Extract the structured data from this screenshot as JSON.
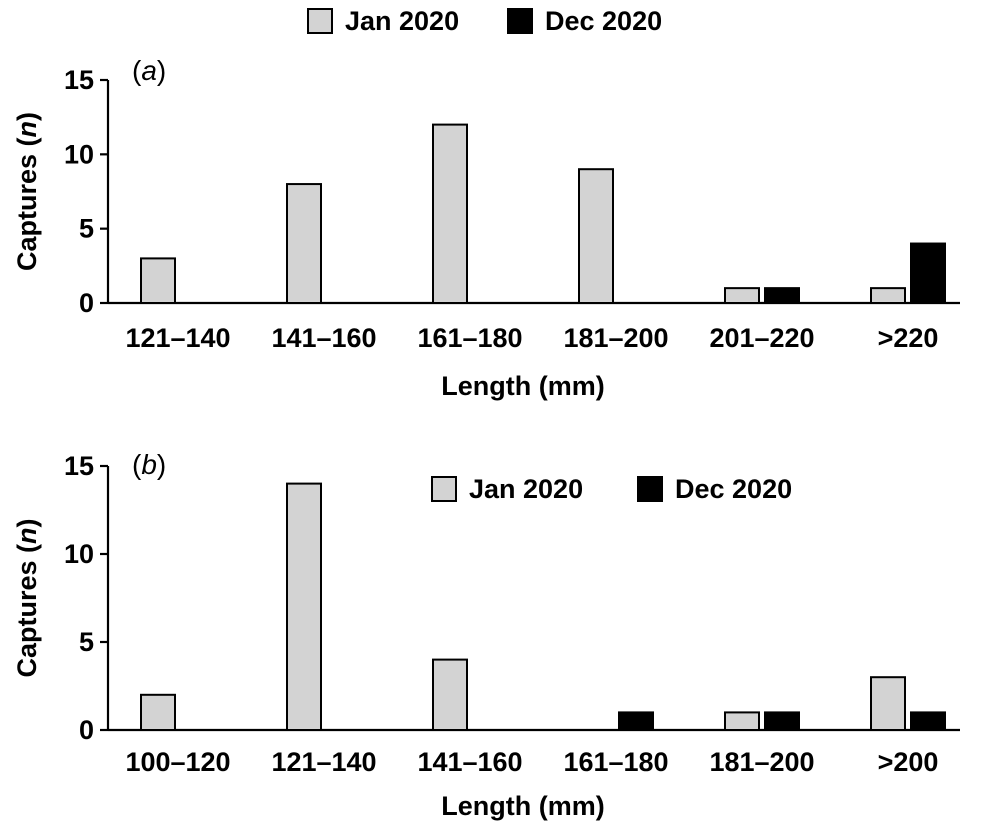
{
  "colors": {
    "jan": "#d3d3d3",
    "dec": "#000000"
  },
  "chart_data": [
    {
      "type": "bar",
      "panel_label": "a",
      "categories": [
        "121–140",
        "141–160",
        "161–180",
        "181–200",
        "201–220",
        ">220"
      ],
      "series": [
        {
          "name": "Jan 2020",
          "values": [
            3,
            8,
            12,
            9,
            1,
            1
          ]
        },
        {
          "name": "Dec 2020",
          "values": [
            0,
            0,
            0,
            0,
            1,
            4
          ]
        }
      ],
      "xlabel": "Length (mm)",
      "ylabel": "Captures (n)",
      "ylabel_main": "Captures (",
      "ylabel_var": "n",
      "ylabel_end": ")",
      "ylim": [
        0,
        15
      ],
      "yticks": [
        0,
        5,
        10,
        15
      ],
      "legend_position": "top-center"
    },
    {
      "type": "bar",
      "panel_label": "b",
      "categories": [
        "100–120",
        "121–140",
        "141–160",
        "161–180",
        "181–200",
        ">200"
      ],
      "series": [
        {
          "name": "Jan 2020",
          "values": [
            2,
            14,
            4,
            0,
            1,
            3
          ]
        },
        {
          "name": "Dec 2020",
          "values": [
            0,
            0,
            0,
            1,
            1,
            1
          ]
        }
      ],
      "xlabel": "Length (mm)",
      "ylabel": "Captures (n)",
      "ylabel_main": "Captures (",
      "ylabel_var": "n",
      "ylabel_end": ")",
      "ylim": [
        0,
        15
      ],
      "yticks": [
        0,
        5,
        10,
        15
      ],
      "legend_position": "top-right"
    }
  ]
}
